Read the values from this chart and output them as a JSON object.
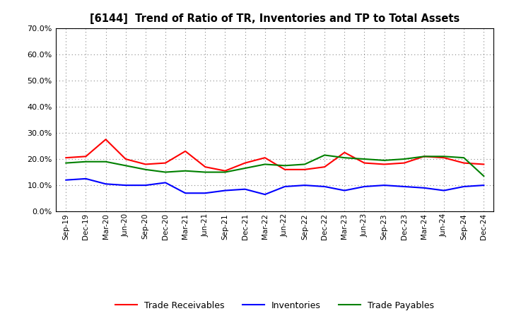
{
  "title": "[6144]  Trend of Ratio of TR, Inventories and TP to Total Assets",
  "x_labels": [
    "Sep-19",
    "Dec-19",
    "Mar-20",
    "Jun-20",
    "Sep-20",
    "Dec-20",
    "Mar-21",
    "Jun-21",
    "Sep-21",
    "Dec-21",
    "Mar-22",
    "Jun-22",
    "Sep-22",
    "Dec-22",
    "Mar-23",
    "Jun-23",
    "Sep-23",
    "Dec-23",
    "Mar-24",
    "Jun-24",
    "Sep-24",
    "Dec-24"
  ],
  "trade_receivables": [
    20.5,
    21.0,
    27.5,
    20.0,
    18.0,
    18.5,
    23.0,
    17.0,
    15.5,
    18.5,
    20.5,
    16.0,
    16.0,
    17.0,
    22.5,
    18.5,
    18.0,
    18.5,
    21.0,
    20.5,
    18.5,
    18.0
  ],
  "inventories": [
    12.0,
    12.5,
    10.5,
    10.0,
    10.0,
    11.0,
    7.0,
    7.0,
    8.0,
    8.5,
    6.5,
    9.5,
    10.0,
    9.5,
    8.0,
    9.5,
    10.0,
    9.5,
    9.0,
    8.0,
    9.5,
    10.0
  ],
  "trade_payables": [
    18.5,
    19.0,
    19.0,
    17.5,
    16.0,
    15.0,
    15.5,
    15.0,
    15.0,
    16.5,
    18.0,
    17.5,
    18.0,
    21.5,
    20.5,
    20.0,
    19.5,
    20.0,
    21.0,
    21.0,
    20.5,
    13.5
  ],
  "ylim": [
    0.0,
    70.0
  ],
  "yticks": [
    0.0,
    10.0,
    20.0,
    30.0,
    40.0,
    50.0,
    60.0,
    70.0
  ],
  "tr_color": "#ff0000",
  "inv_color": "#0000ff",
  "tp_color": "#008000",
  "background_color": "#ffffff",
  "grid_color": "#aaaaaa",
  "legend_labels": [
    "Trade Receivables",
    "Inventories",
    "Trade Payables"
  ]
}
